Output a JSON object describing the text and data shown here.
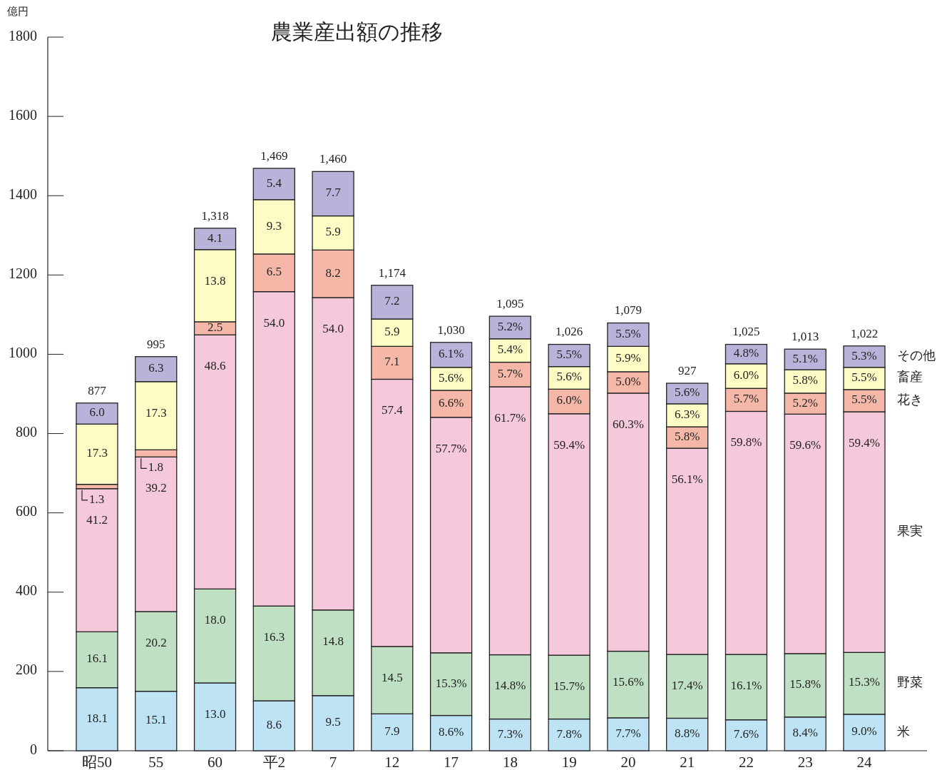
{
  "chart_data": {
    "type": "bar",
    "stacked": true,
    "title": "農業産出額の推移",
    "ylabel": "億円",
    "categories": [
      "昭50",
      "55",
      "60",
      "平2",
      "7",
      "12",
      "17",
      "18",
      "19",
      "20",
      "21",
      "22",
      "23",
      "24"
    ],
    "ylim": [
      0,
      1800
    ],
    "yticks": [
      0,
      200,
      400,
      600,
      800,
      1000,
      1200,
      1400,
      1600,
      1800
    ],
    "grid": false,
    "legend": false,
    "series": [
      {
        "name": "米",
        "color": "#bde3f5",
        "values": [
          159,
          150,
          171,
          126,
          139,
          93,
          89,
          80,
          80,
          83,
          82,
          78,
          85,
          92
        ]
      },
      {
        "name": "野菜",
        "color": "#c0e0c4",
        "values": [
          141,
          201,
          237,
          239,
          216,
          170,
          158,
          162,
          161,
          168,
          161,
          165,
          160,
          156
        ]
      },
      {
        "name": "果実",
        "color": "#f5c8dc",
        "values": [
          361,
          390,
          641,
          793,
          788,
          674,
          594,
          676,
          609,
          651,
          520,
          613,
          604,
          607
        ]
      },
      {
        "name": "花き",
        "color": "#f5b8a8",
        "values": [
          11,
          18,
          33,
          95,
          120,
          83,
          68,
          62,
          62,
          54,
          54,
          58,
          53,
          56
        ]
      },
      {
        "name": "畜産",
        "color": "#fdfcc4",
        "values": [
          152,
          172,
          182,
          137,
          86,
          69,
          58,
          59,
          57,
          64,
          58,
          62,
          59,
          56
        ]
      },
      {
        "name": "その他",
        "color": "#b9b3d9",
        "values": [
          53,
          63,
          54,
          79,
          112,
          85,
          63,
          57,
          56,
          59,
          52,
          49,
          52,
          54
        ]
      }
    ],
    "totals": [
      "877",
      "995",
      "1,318",
      "1,469",
      "1,460",
      "1,174",
      "1,030",
      "1,095",
      "1,026",
      "1,079",
      "927",
      "1,025",
      "1,013",
      "1,022"
    ],
    "annotations": [
      {
        "text": "18.1",
        "x": "昭50",
        "y": 159
      },
      {
        "text": "16.1",
        "x": "昭50",
        "y": 300
      },
      {
        "text": "41.2",
        "x": "昭50",
        "y": 661
      },
      {
        "text": "1.3",
        "x": "昭50",
        "y": 672
      },
      {
        "text": "17.3",
        "x": "昭50",
        "y": 824
      },
      {
        "text": "6.0",
        "x": "昭50",
        "y": 877
      },
      {
        "text": "15.1",
        "x": "55",
        "y": 150
      },
      {
        "text": "20.2",
        "x": "55",
        "y": 351
      },
      {
        "text": "39.2",
        "x": "55",
        "y": 741
      },
      {
        "text": "1.8",
        "x": "55",
        "y": 759
      },
      {
        "text": "17.3",
        "x": "55",
        "y": 931
      },
      {
        "text": "6.3",
        "x": "55",
        "y": 994
      },
      {
        "text": "13.0",
        "x": "60",
        "y": 171
      },
      {
        "text": "18.0",
        "x": "60",
        "y": 408
      },
      {
        "text": "48.6",
        "x": "60",
        "y": 1049
      },
      {
        "text": "2.5",
        "x": "60",
        "y": 1082
      },
      {
        "text": "13.8",
        "x": "60",
        "y": 1264
      },
      {
        "text": "4.1",
        "x": "60",
        "y": 1318
      },
      {
        "text": "8.6",
        "x": "平2",
        "y": 126
      },
      {
        "text": "16.3",
        "x": "平2",
        "y": 365
      },
      {
        "text": "54.0",
        "x": "平2",
        "y": 1158
      },
      {
        "text": "6.5",
        "x": "平2",
        "y": 1253
      },
      {
        "text": "9.3",
        "x": "平2",
        "y": 1390
      },
      {
        "text": "5.4",
        "x": "平2",
        "y": 1469
      },
      {
        "text": "9.5",
        "x": "7",
        "y": 139
      },
      {
        "text": "14.8",
        "x": "7",
        "y": 355
      },
      {
        "text": "54.0",
        "x": "7",
        "y": 1143
      },
      {
        "text": "8.2",
        "x": "7",
        "y": 1263
      },
      {
        "text": "5.9",
        "x": "7",
        "y": 1349
      },
      {
        "text": "7.7",
        "x": "7",
        "y": 1461
      },
      {
        "text": "7.9",
        "x": "12",
        "y": 93
      },
      {
        "text": "14.5",
        "x": "12",
        "y": 263
      },
      {
        "text": "57.4",
        "x": "12",
        "y": 937
      },
      {
        "text": "7.1",
        "x": "12",
        "y": 1020
      },
      {
        "text": "5.9",
        "x": "12",
        "y": 1089
      },
      {
        "text": "7.2",
        "x": "12",
        "y": 1174
      },
      {
        "text": "8.6%",
        "x": "17",
        "y": 89
      },
      {
        "text": "15.3%",
        "x": "17",
        "y": 247
      },
      {
        "text": "57.7%",
        "x": "17",
        "y": 841
      },
      {
        "text": "6.6%",
        "x": "17",
        "y": 909
      },
      {
        "text": "5.6%",
        "x": "17",
        "y": 967
      },
      {
        "text": "6.1%",
        "x": "17",
        "y": 1030
      },
      {
        "text": "7.3%",
        "x": "18",
        "y": 80
      },
      {
        "text": "14.8%",
        "x": "18",
        "y": 242
      },
      {
        "text": "61.7%",
        "x": "18",
        "y": 918
      },
      {
        "text": "5.7%",
        "x": "18",
        "y": 980
      },
      {
        "text": "5.4%",
        "x": "18",
        "y": 1039
      },
      {
        "text": "5.2%",
        "x": "18",
        "y": 1096
      },
      {
        "text": "7.8%",
        "x": "19",
        "y": 80
      },
      {
        "text": "15.7%",
        "x": "19",
        "y": 241
      },
      {
        "text": "59.4%",
        "x": "19",
        "y": 850
      },
      {
        "text": "6.0%",
        "x": "19",
        "y": 912
      },
      {
        "text": "5.6%",
        "x": "19",
        "y": 969
      },
      {
        "text": "5.5%",
        "x": "19",
        "y": 1025
      },
      {
        "text": "7.7%",
        "x": "20",
        "y": 83
      },
      {
        "text": "15.6%",
        "x": "20",
        "y": 251
      },
      {
        "text": "60.3%",
        "x": "20",
        "y": 902
      },
      {
        "text": "5.0%",
        "x": "20",
        "y": 956
      },
      {
        "text": "5.9%",
        "x": "20",
        "y": 1020
      },
      {
        "text": "5.5%",
        "x": "20",
        "y": 1079
      },
      {
        "text": "8.8%",
        "x": "21",
        "y": 82
      },
      {
        "text": "17.4%",
        "x": "21",
        "y": 243
      },
      {
        "text": "56.1%",
        "x": "21",
        "y": 763
      },
      {
        "text": "5.8%",
        "x": "21",
        "y": 817
      },
      {
        "text": "6.3%",
        "x": "21",
        "y": 875
      },
      {
        "text": "5.6%",
        "x": "21",
        "y": 927
      },
      {
        "text": "7.6%",
        "x": "22",
        "y": 78
      },
      {
        "text": "16.1%",
        "x": "22",
        "y": 243
      },
      {
        "text": "59.8%",
        "x": "22",
        "y": 856
      },
      {
        "text": "5.7%",
        "x": "22",
        "y": 914
      },
      {
        "text": "6.0%",
        "x": "22",
        "y": 976
      },
      {
        "text": "4.8%",
        "x": "22",
        "y": 1025
      },
      {
        "text": "8.4%",
        "x": "23",
        "y": 85
      },
      {
        "text": "15.8%",
        "x": "23",
        "y": 245
      },
      {
        "text": "59.6%",
        "x": "23",
        "y": 849
      },
      {
        "text": "5.2%",
        "x": "23",
        "y": 902
      },
      {
        "text": "5.8%",
        "x": "23",
        "y": 961
      },
      {
        "text": "5.1%",
        "x": "23",
        "y": 1013
      },
      {
        "text": "9.0%",
        "x": "24",
        "y": 92
      },
      {
        "text": "15.3%",
        "x": "24",
        "y": 248
      },
      {
        "text": "59.4%",
        "x": "24",
        "y": 855
      },
      {
        "text": "5.5%",
        "x": "24",
        "y": 911
      },
      {
        "text": "5.5%",
        "x": "24",
        "y": 967
      },
      {
        "text": "5.3%",
        "x": "24",
        "y": 1021
      }
    ]
  }
}
